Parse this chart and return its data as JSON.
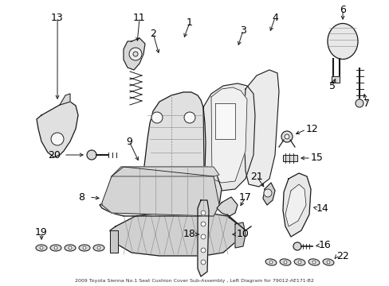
{
  "title": "2009 Toyota Sienna No.1 Seat Cushion Cover Sub-Assembly , Left Diagram for 79012-AE171-B2",
  "bg": "#ffffff",
  "fig_w": 4.89,
  "fig_h": 3.6,
  "dpi": 100,
  "lc": "#1a1a1a",
  "fc": "#e8e8e8",
  "fc2": "#f0f0f0",
  "label_fs": 9,
  "caption_fs": 4.5
}
